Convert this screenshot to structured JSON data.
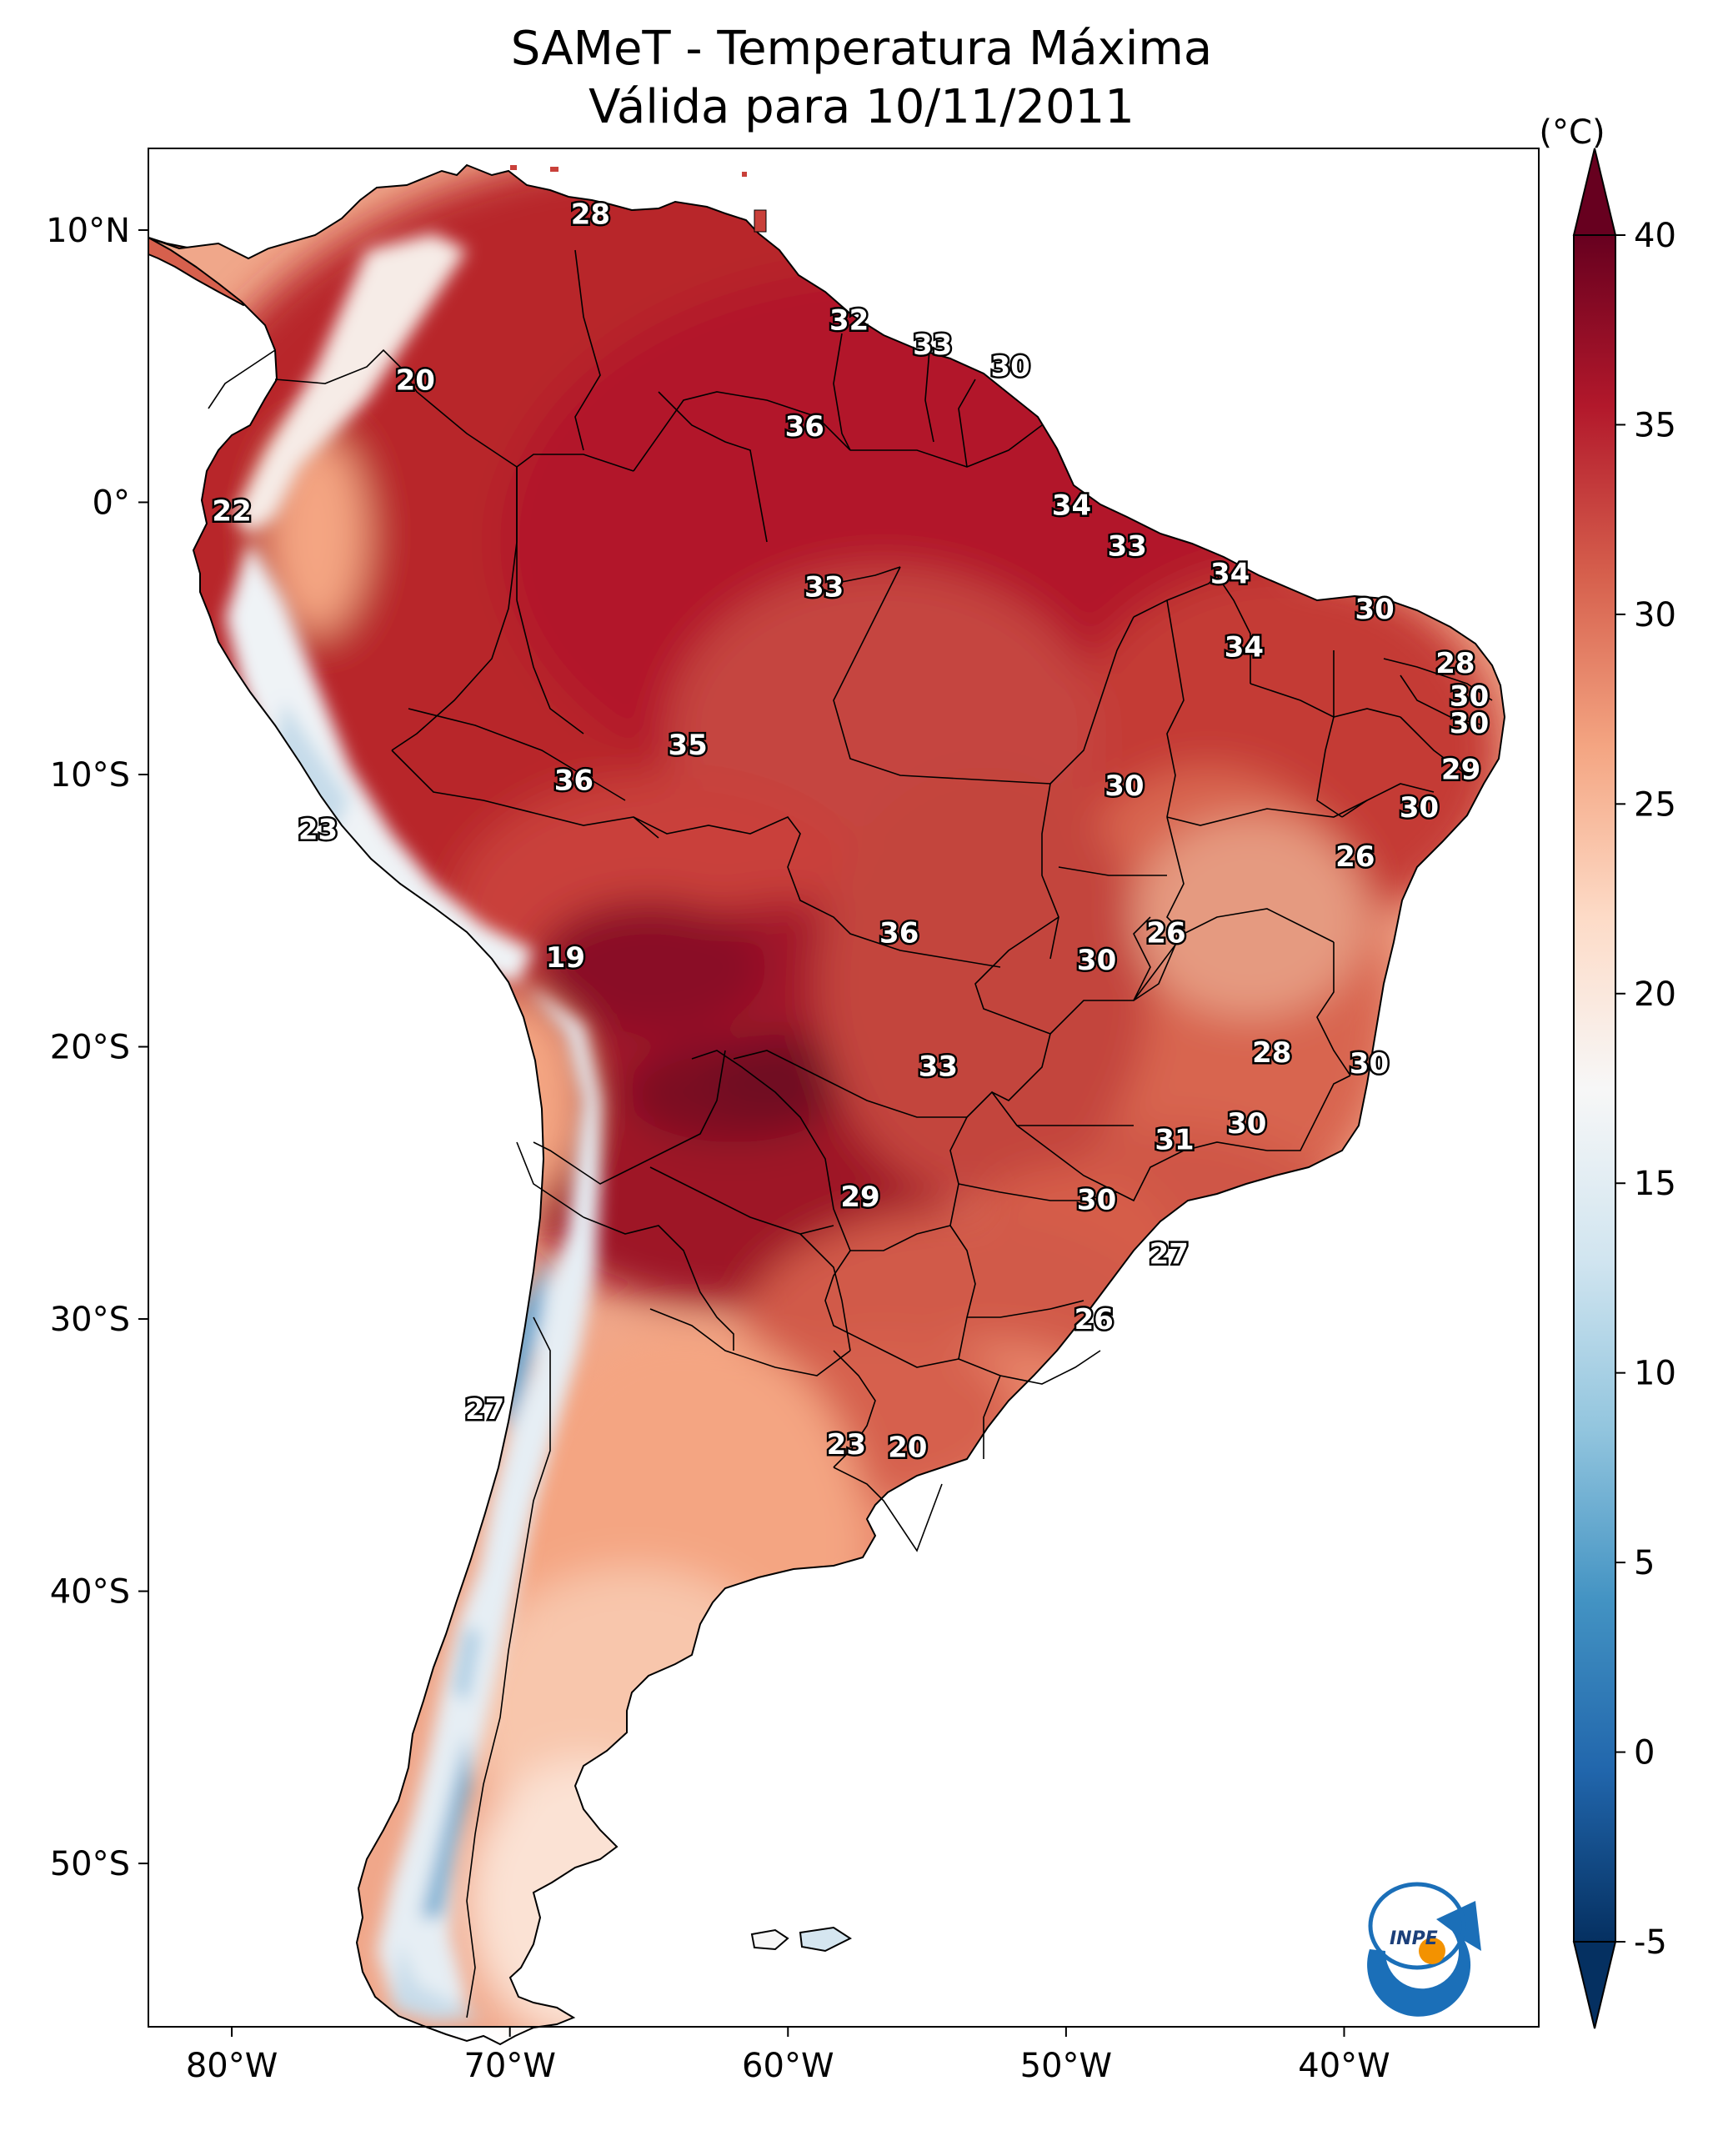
{
  "title_line1": "SAMeT - Temperatura Máxima",
  "title_line2": "Válida para 10/11/2011",
  "colorbar": {
    "unit": "(°C)",
    "min": -5,
    "max": 40,
    "ticks": [
      "40",
      "35",
      "30",
      "25",
      "20",
      "15",
      "10",
      "5",
      "0",
      "-5"
    ],
    "colors": [
      "#053061",
      "#2166ac",
      "#4393c3",
      "#92c5de",
      "#d1e5f0",
      "#f7f7f7",
      "#fddbc7",
      "#f4a582",
      "#d6604d",
      "#b2182b",
      "#67001f"
    ]
  },
  "axes": {
    "lon_ticks": [
      "80°W",
      "70°W",
      "60°W",
      "50°W",
      "40°W"
    ],
    "lat_ticks": [
      "10°N",
      "0°",
      "10°S",
      "20°S",
      "30°S",
      "40°S",
      "50°S"
    ],
    "lon_range": [
      -83,
      -33
    ],
    "lat_range": [
      -56,
      13
    ]
  },
  "contour_labels": [
    {
      "text": "28",
      "lon": -67.1,
      "lat": 10.6
    },
    {
      "text": "32",
      "lon": -57.8,
      "lat": 6.7
    },
    {
      "text": "33",
      "lon": -54.8,
      "lat": 5.8
    },
    {
      "text": "30",
      "lon": -52.0,
      "lat": 5.0
    },
    {
      "text": "20",
      "lon": -73.4,
      "lat": 4.5
    },
    {
      "text": "36",
      "lon": -59.4,
      "lat": 2.8
    },
    {
      "text": "34",
      "lon": -49.8,
      "lat": -0.1
    },
    {
      "text": "22",
      "lon": -80.0,
      "lat": -0.3
    },
    {
      "text": "33",
      "lon": -47.8,
      "lat": -1.6
    },
    {
      "text": "34",
      "lon": -44.1,
      "lat": -2.6
    },
    {
      "text": "33",
      "lon": -58.7,
      "lat": -3.1
    },
    {
      "text": "30",
      "lon": -38.9,
      "lat": -3.9
    },
    {
      "text": "34",
      "lon": -43.6,
      "lat": -5.3
    },
    {
      "text": "28",
      "lon": -36.0,
      "lat": -5.9
    },
    {
      "text": "30",
      "lon": -35.5,
      "lat": -7.1
    },
    {
      "text": "30",
      "lon": -35.5,
      "lat": -8.1
    },
    {
      "text": "35",
      "lon": -63.6,
      "lat": -8.9
    },
    {
      "text": "29",
      "lon": -35.8,
      "lat": -9.8
    },
    {
      "text": "36",
      "lon": -67.7,
      "lat": -10.2
    },
    {
      "text": "30",
      "lon": -47.9,
      "lat": -10.4
    },
    {
      "text": "30",
      "lon": -37.3,
      "lat": -11.2
    },
    {
      "text": "23",
      "lon": -76.9,
      "lat": -12.0
    },
    {
      "text": "26",
      "lon": -39.6,
      "lat": -13.0
    },
    {
      "text": "36",
      "lon": -56.0,
      "lat": -15.8
    },
    {
      "text": "26",
      "lon": -46.4,
      "lat": -15.8
    },
    {
      "text": "19",
      "lon": -68.0,
      "lat": -16.7
    },
    {
      "text": "30",
      "lon": -48.9,
      "lat": -16.8
    },
    {
      "text": "28",
      "lon": -42.6,
      "lat": -20.2
    },
    {
      "text": "30",
      "lon": -39.1,
      "lat": -20.6
    },
    {
      "text": "33",
      "lon": -54.6,
      "lat": -20.7
    },
    {
      "text": "30",
      "lon": -43.5,
      "lat": -22.8
    },
    {
      "text": "31",
      "lon": -46.1,
      "lat": -23.4
    },
    {
      "text": "29",
      "lon": -57.4,
      "lat": -25.5
    },
    {
      "text": "30",
      "lon": -48.9,
      "lat": -25.6
    },
    {
      "text": "27",
      "lon": -46.3,
      "lat": -27.6
    },
    {
      "text": "26",
      "lon": -49.0,
      "lat": -30.0
    },
    {
      "text": "27",
      "lon": -70.9,
      "lat": -33.3
    },
    {
      "text": "23",
      "lon": -57.9,
      "lat": -34.6
    },
    {
      "text": "20",
      "lon": -55.7,
      "lat": -34.7
    }
  ],
  "logo": {
    "text": "INPE"
  }
}
